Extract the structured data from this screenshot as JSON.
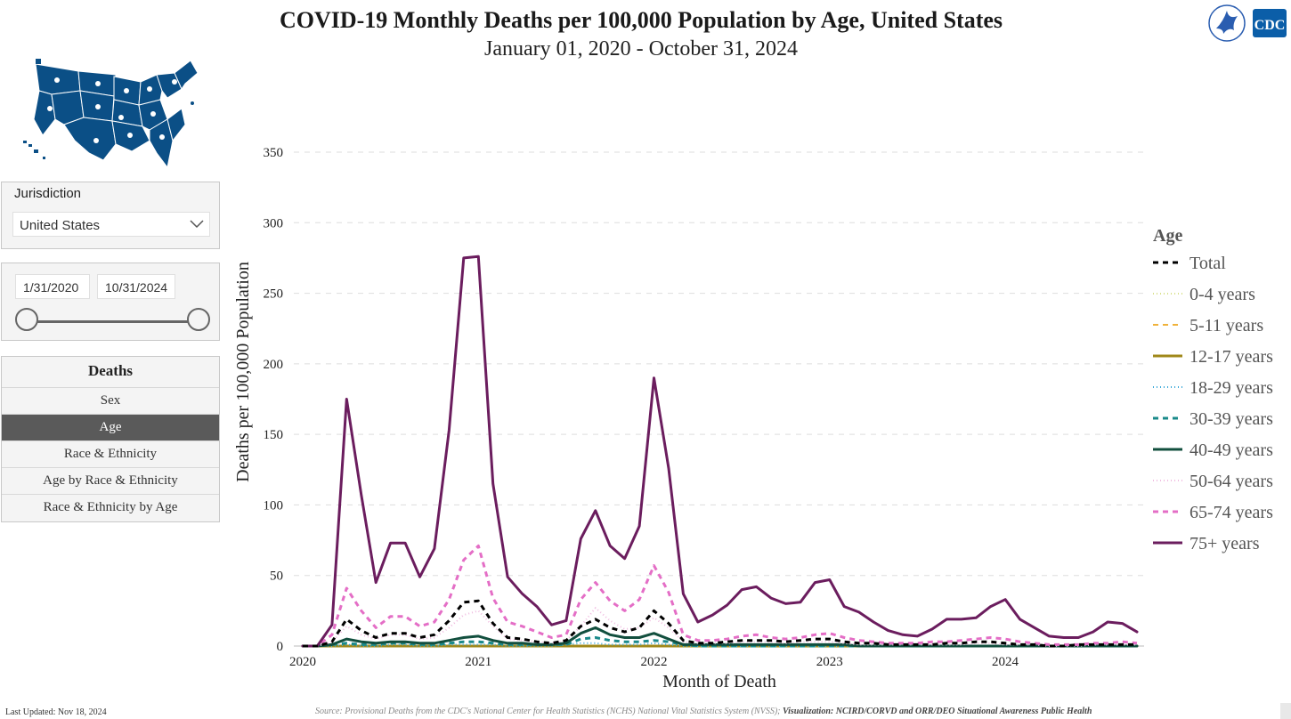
{
  "header": {
    "title": "COVID-19 Monthly Deaths per 100,000 Population by Age, United States",
    "subtitle": "January 01, 2020 - October 31, 2024"
  },
  "logos": {
    "cdc_text": "CDC"
  },
  "filters": {
    "jurisdiction_label": "Jurisdiction",
    "jurisdiction_value": "United States",
    "date_start": "1/31/2020",
    "date_end": "10/31/2024"
  },
  "nav": {
    "header": "Deaths",
    "items": [
      "Sex",
      "Age",
      "Race & Ethnicity",
      "Age by Race & Ethnicity",
      "Race & Ethnicity by Age"
    ],
    "active_index": 1
  },
  "footer": {
    "last_updated": "Last Updated: Nov 18, 2024",
    "source": "Source: Provisional Deaths from the CDC's National Center for Health Statistics (NCHS) National Vital Statistics System (NVSS);",
    "visualization": "Visualization: NCIRD/CORVD and ORR/DEO Situational Awareness Public Health"
  },
  "colors": {
    "map_fill": "#0b4f86",
    "nav_active": "#5a5a5a",
    "grid": "#dddddd"
  },
  "chart_data": {
    "type": "line",
    "title": "COVID-19 Monthly Deaths per 100,000 Population by Age, United States",
    "subtitle": "January 01, 2020 - October 31, 2024",
    "xlabel": "Month of Death",
    "ylabel": "Deaths per 100,000 Population",
    "ylim": [
      0,
      350
    ],
    "yticks": [
      0,
      50,
      100,
      150,
      200,
      250,
      300,
      350
    ],
    "xticks": [
      {
        "label": "2020",
        "month": 0
      },
      {
        "label": "2021",
        "month": 12
      },
      {
        "label": "2022",
        "month": 24
      },
      {
        "label": "2023",
        "month": 36
      },
      {
        "label": "2024",
        "month": 48
      }
    ],
    "x_start": "2020-01",
    "x_end": "2024-10",
    "legend_title": "Age",
    "legend_position": "right",
    "grid": "horizontal dashed",
    "series": [
      {
        "name": "Total",
        "color": "#000000",
        "dash": "6,5",
        "width": 3,
        "values": [
          0,
          0,
          3,
          19,
          11,
          6,
          9,
          9,
          6,
          8,
          18,
          31,
          32,
          16,
          6,
          5,
          3,
          2,
          4,
          14,
          19,
          13,
          10,
          13,
          25,
          16,
          4,
          2,
          2,
          3,
          4,
          4,
          4,
          3,
          4,
          5,
          5,
          3,
          2,
          2,
          1,
          1,
          1,
          1,
          2,
          2,
          3,
          3,
          2,
          1,
          1,
          0,
          0,
          1,
          1,
          1,
          1,
          1
        ]
      },
      {
        "name": "0-4 years",
        "color": "#d8e08a",
        "dash": "1,3",
        "width": 2,
        "values": [
          0,
          0,
          0,
          0,
          0,
          0,
          0,
          0,
          0,
          0,
          0,
          0,
          0,
          0,
          0,
          0,
          0,
          0,
          0,
          0,
          0,
          0,
          0,
          0,
          0,
          0,
          0,
          0,
          0,
          0,
          0,
          0,
          0,
          0,
          0,
          0,
          0,
          0,
          0,
          0,
          0,
          0,
          0,
          0,
          0,
          0,
          0,
          0,
          0,
          0,
          0,
          0,
          0,
          0,
          0,
          0,
          0,
          0
        ]
      },
      {
        "name": "5-11 years",
        "color": "#f0b23a",
        "dash": "6,5",
        "width": 2,
        "values": [
          0,
          0,
          0,
          0,
          0,
          0,
          0,
          0,
          0,
          0,
          0,
          0,
          0,
          0,
          0,
          0,
          0,
          0,
          0,
          0,
          0,
          0,
          0,
          0,
          0,
          0,
          0,
          0,
          0,
          0,
          0,
          0,
          0,
          0,
          0,
          0,
          0,
          0,
          0,
          0,
          0,
          0,
          0,
          0,
          0,
          0,
          0,
          0,
          0,
          0,
          0,
          0,
          0,
          0,
          0,
          0,
          0,
          0
        ]
      },
      {
        "name": "12-17 years",
        "color": "#a0881a",
        "dash": "",
        "width": 3,
        "values": [
          0,
          0,
          0,
          0,
          0,
          0,
          0,
          0,
          0,
          0,
          0,
          0,
          0,
          0,
          0,
          0,
          0,
          0,
          0,
          0,
          0,
          0,
          0,
          0,
          0,
          0,
          0,
          0,
          0,
          0,
          0,
          0,
          0,
          0,
          0,
          0,
          0,
          0,
          0,
          0,
          0,
          0,
          0,
          0,
          0,
          0,
          0,
          0,
          0,
          0,
          0,
          0,
          0,
          0,
          0,
          0,
          0,
          0
        ]
      },
      {
        "name": "18-29 years",
        "color": "#3aa8d8",
        "dash": "1,3",
        "width": 2,
        "values": [
          0,
          0,
          0,
          1,
          0,
          0,
          1,
          1,
          0,
          0,
          1,
          1,
          1,
          1,
          0,
          0,
          0,
          0,
          1,
          2,
          2,
          1,
          1,
          1,
          2,
          1,
          0,
          0,
          0,
          0,
          0,
          0,
          0,
          0,
          0,
          0,
          0,
          0,
          0,
          0,
          0,
          0,
          0,
          0,
          0,
          0,
          0,
          0,
          0,
          0,
          0,
          0,
          0,
          0,
          0,
          0,
          0,
          0
        ]
      },
      {
        "name": "30-39 years",
        "color": "#1a8a8a",
        "dash": "6,5",
        "width": 3,
        "values": [
          0,
          0,
          1,
          2,
          1,
          1,
          2,
          2,
          1,
          1,
          2,
          3,
          3,
          2,
          1,
          1,
          1,
          1,
          1,
          5,
          6,
          4,
          3,
          3,
          4,
          3,
          1,
          0,
          0,
          0,
          0,
          0,
          0,
          0,
          0,
          0,
          0,
          0,
          0,
          0,
          0,
          0,
          0,
          0,
          0,
          0,
          0,
          0,
          0,
          0,
          0,
          0,
          0,
          0,
          0,
          0,
          0,
          0
        ]
      },
      {
        "name": "40-49 years",
        "color": "#124f3e",
        "dash": "",
        "width": 3,
        "values": [
          0,
          0,
          1,
          5,
          3,
          2,
          3,
          3,
          2,
          2,
          4,
          6,
          7,
          4,
          2,
          2,
          1,
          1,
          2,
          9,
          13,
          8,
          6,
          6,
          9,
          5,
          1,
          1,
          1,
          1,
          1,
          1,
          1,
          1,
          1,
          1,
          1,
          1,
          0,
          0,
          0,
          0,
          0,
          0,
          0,
          0,
          0,
          0,
          0,
          0,
          0,
          0,
          0,
          0,
          0,
          0,
          0,
          0
        ]
      },
      {
        "name": "50-64 years",
        "color": "#f0bce0",
        "dash": "1,3",
        "width": 2,
        "values": [
          0,
          0,
          3,
          14,
          8,
          5,
          8,
          8,
          5,
          6,
          13,
          22,
          25,
          14,
          5,
          4,
          3,
          2,
          4,
          14,
          27,
          18,
          12,
          13,
          20,
          13,
          3,
          2,
          2,
          2,
          3,
          3,
          3,
          2,
          3,
          3,
          3,
          2,
          1,
          1,
          1,
          1,
          1,
          1,
          1,
          1,
          2,
          2,
          1,
          1,
          1,
          0,
          0,
          0,
          1,
          1,
          1,
          1
        ]
      },
      {
        "name": "65-74 years",
        "color": "#e46ec6",
        "dash": "6,5",
        "width": 3,
        "values": [
          0,
          0,
          8,
          41,
          25,
          13,
          21,
          21,
          14,
          17,
          33,
          61,
          71,
          34,
          17,
          14,
          10,
          6,
          8,
          33,
          45,
          32,
          25,
          33,
          57,
          38,
          8,
          4,
          4,
          5,
          7,
          8,
          6,
          5,
          6,
          8,
          9,
          6,
          4,
          3,
          2,
          2,
          2,
          3,
          3,
          4,
          5,
          6,
          5,
          3,
          2,
          1,
          1,
          1,
          2,
          2,
          3,
          2
        ]
      },
      {
        "name": "75+ years",
        "color": "#6b1d5e",
        "dash": "",
        "width": 3,
        "values": [
          0,
          0,
          15,
          175,
          107,
          45,
          73,
          73,
          49,
          69,
          153,
          275,
          276,
          115,
          49,
          37,
          28,
          15,
          18,
          76,
          96,
          71,
          62,
          85,
          190,
          126,
          37,
          17,
          22,
          29,
          40,
          42,
          34,
          30,
          31,
          45,
          47,
          28,
          24,
          17,
          11,
          8,
          7,
          12,
          19,
          19,
          20,
          28,
          33,
          19,
          13,
          7,
          6,
          6,
          10,
          17,
          16,
          10
        ]
      }
    ]
  }
}
